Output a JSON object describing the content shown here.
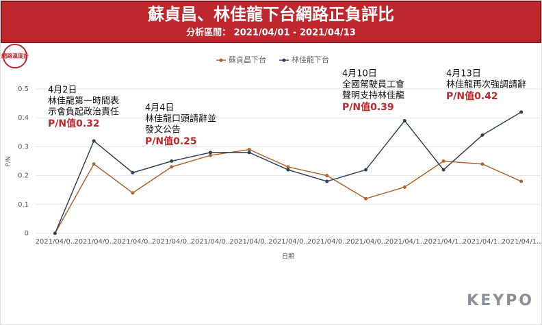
{
  "header": {
    "title": "蘇貞昌、林佳龍下台網路正負評比",
    "subtitle": "分析區間： 2021/04/01 - 2021/04/13",
    "logo": "網路溫度計",
    "watermark": "KEYPO"
  },
  "chart_data": {
    "type": "line",
    "categories": [
      "2021/04/0..",
      "2021/04/0..",
      "2021/04/0..",
      "2021/04/0..",
      "2021/04/0..",
      "2021/04/0..",
      "2021/04/0..",
      "2021/04/0..",
      "2021/04/0..",
      "2021/04/1..",
      "2021/04/1..",
      "2021/04/1..",
      "2021/04/1.."
    ],
    "series": [
      {
        "name": "蘇貞昌下台",
        "color": "#b0642c",
        "values": [
          0,
          0.24,
          0.14,
          0.23,
          0.27,
          0.29,
          0.23,
          0.2,
          0.12,
          0.16,
          0.25,
          0.24,
          0.18
        ]
      },
      {
        "name": "林佳龍下台",
        "color": "#2f4156",
        "values": [
          0,
          0.32,
          0.21,
          0.25,
          0.28,
          0.28,
          0.22,
          0.18,
          0.22,
          0.39,
          0.22,
          0.34,
          0.42
        ]
      }
    ],
    "ylim": [
      0,
      0.5
    ],
    "yticks": [
      0,
      0.1,
      0.2,
      0.3,
      0.4,
      0.5
    ],
    "grid": true,
    "x_label": "日期",
    "y_label": "P/N",
    "legend": "top",
    "annotations": [
      {
        "lines": [
          "4月2日",
          "林佳龍第一時間表",
          "示會負起政治責任"
        ],
        "label": "P/N值0.32"
      },
      {
        "lines": [
          "4月4日",
          "林佳龍口頭請辭並",
          "發文公告"
        ],
        "label": "P/N值0.25"
      },
      {
        "lines": [
          "4月10日",
          "全國駕駛員工會",
          "聲明支持林佳龍"
        ],
        "label": "P/N值0.39"
      },
      {
        "lines": [
          "4月13日",
          "林佳龍再次強調請辭"
        ],
        "label": "P/N值0.42"
      }
    ]
  }
}
